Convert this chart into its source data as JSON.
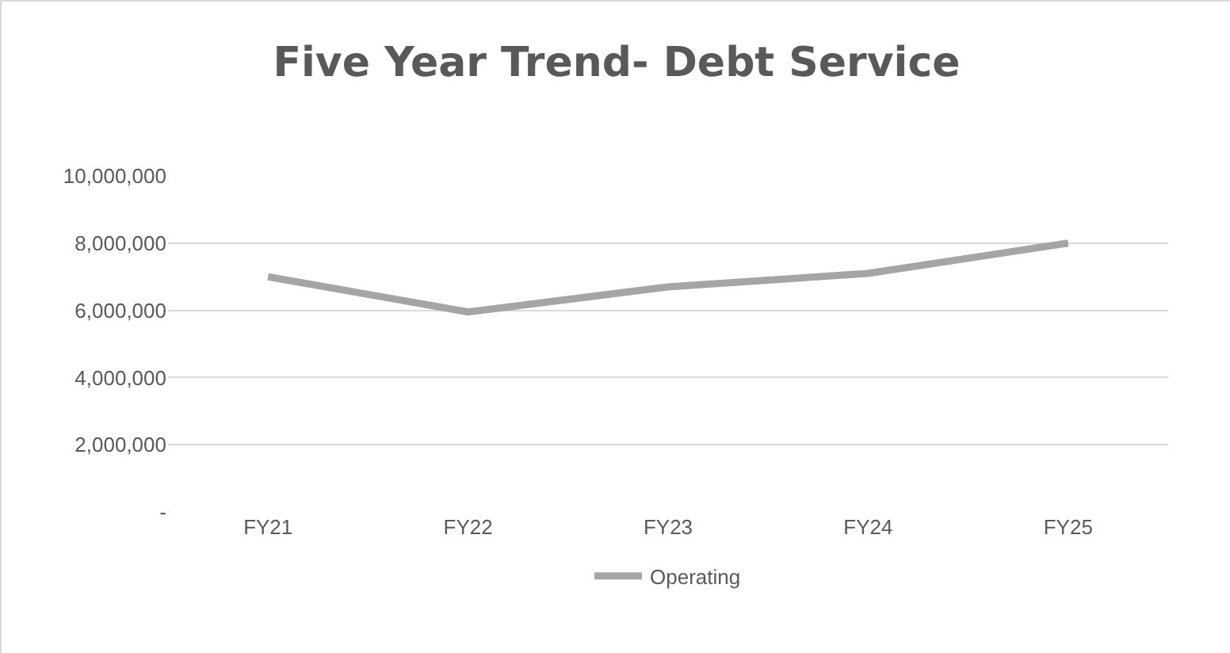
{
  "chart_data": {
    "type": "line",
    "title": "Five Year Trend- Debt Service",
    "categories": [
      "FY21",
      "FY22",
      "FY23",
      "FY24",
      "FY25"
    ],
    "series": [
      {
        "name": "Operating",
        "color": "#a5a5a5",
        "values": [
          7000000,
          5950000,
          6700000,
          7100000,
          8000000
        ]
      }
    ],
    "ylim": [
      0,
      10000000
    ],
    "yticks": [
      {
        "value": 0,
        "label": "-"
      },
      {
        "value": 2000000,
        "label": "2,000,000"
      },
      {
        "value": 4000000,
        "label": "4,000,000"
      },
      {
        "value": 6000000,
        "label": "6,000,000"
      },
      {
        "value": 8000000,
        "label": "8,000,000"
      },
      {
        "value": 10000000,
        "label": "10,000,000"
      }
    ],
    "grid": "y",
    "legend": "bottom",
    "marker": "none",
    "line_style": "solid"
  }
}
